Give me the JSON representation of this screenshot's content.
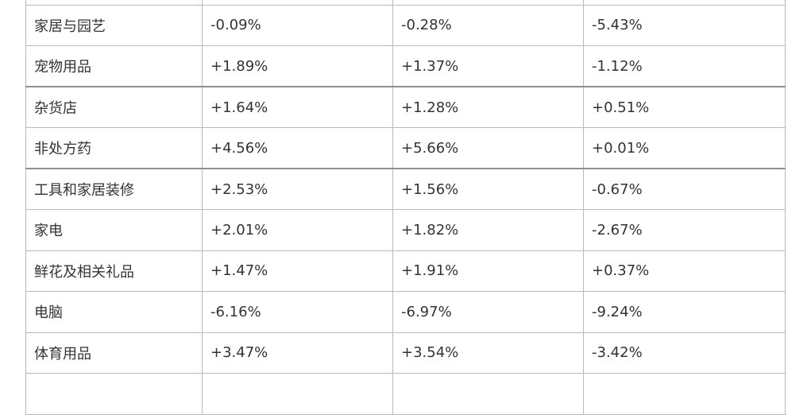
{
  "table": {
    "rows": [
      {
        "category": "",
        "v1": "",
        "v2": "",
        "v3": ""
      },
      {
        "category": "家居与园艺",
        "v1": "-0.09%",
        "v2": "-0.28%",
        "v3": "-5.43%"
      },
      {
        "category": "宠物用品",
        "v1": "+1.89%",
        "v2": "+1.37%",
        "v3": "-1.12%"
      },
      {
        "category": "杂货店",
        "v1": "+1.64%",
        "v2": "+1.28%",
        "v3": "+0.51%"
      },
      {
        "category": "非处方药",
        "v1": "+4.56%",
        "v2": "+5.66%",
        "v3": "+0.01%"
      },
      {
        "category": "工具和家居装修",
        "v1": "+2.53%",
        "v2": "+1.56%",
        "v3": "-0.67%"
      },
      {
        "category": "家电",
        "v1": "+2.01%",
        "v2": "+1.82%",
        "v3": "-2.67%"
      },
      {
        "category": "鲜花及相关礼品",
        "v1": "+1.47%",
        "v2": "+1.91%",
        "v3": "+0.37%"
      },
      {
        "category": "电脑",
        "v1": "-6.16%",
        "v2": "-6.97%",
        "v3": "-9.24%"
      },
      {
        "category": "体育用品",
        "v1": "+3.47%",
        "v2": "+3.54%",
        "v3": "-3.42%"
      },
      {
        "category": "",
        "v1": "",
        "v2": "",
        "v3": ""
      }
    ]
  }
}
